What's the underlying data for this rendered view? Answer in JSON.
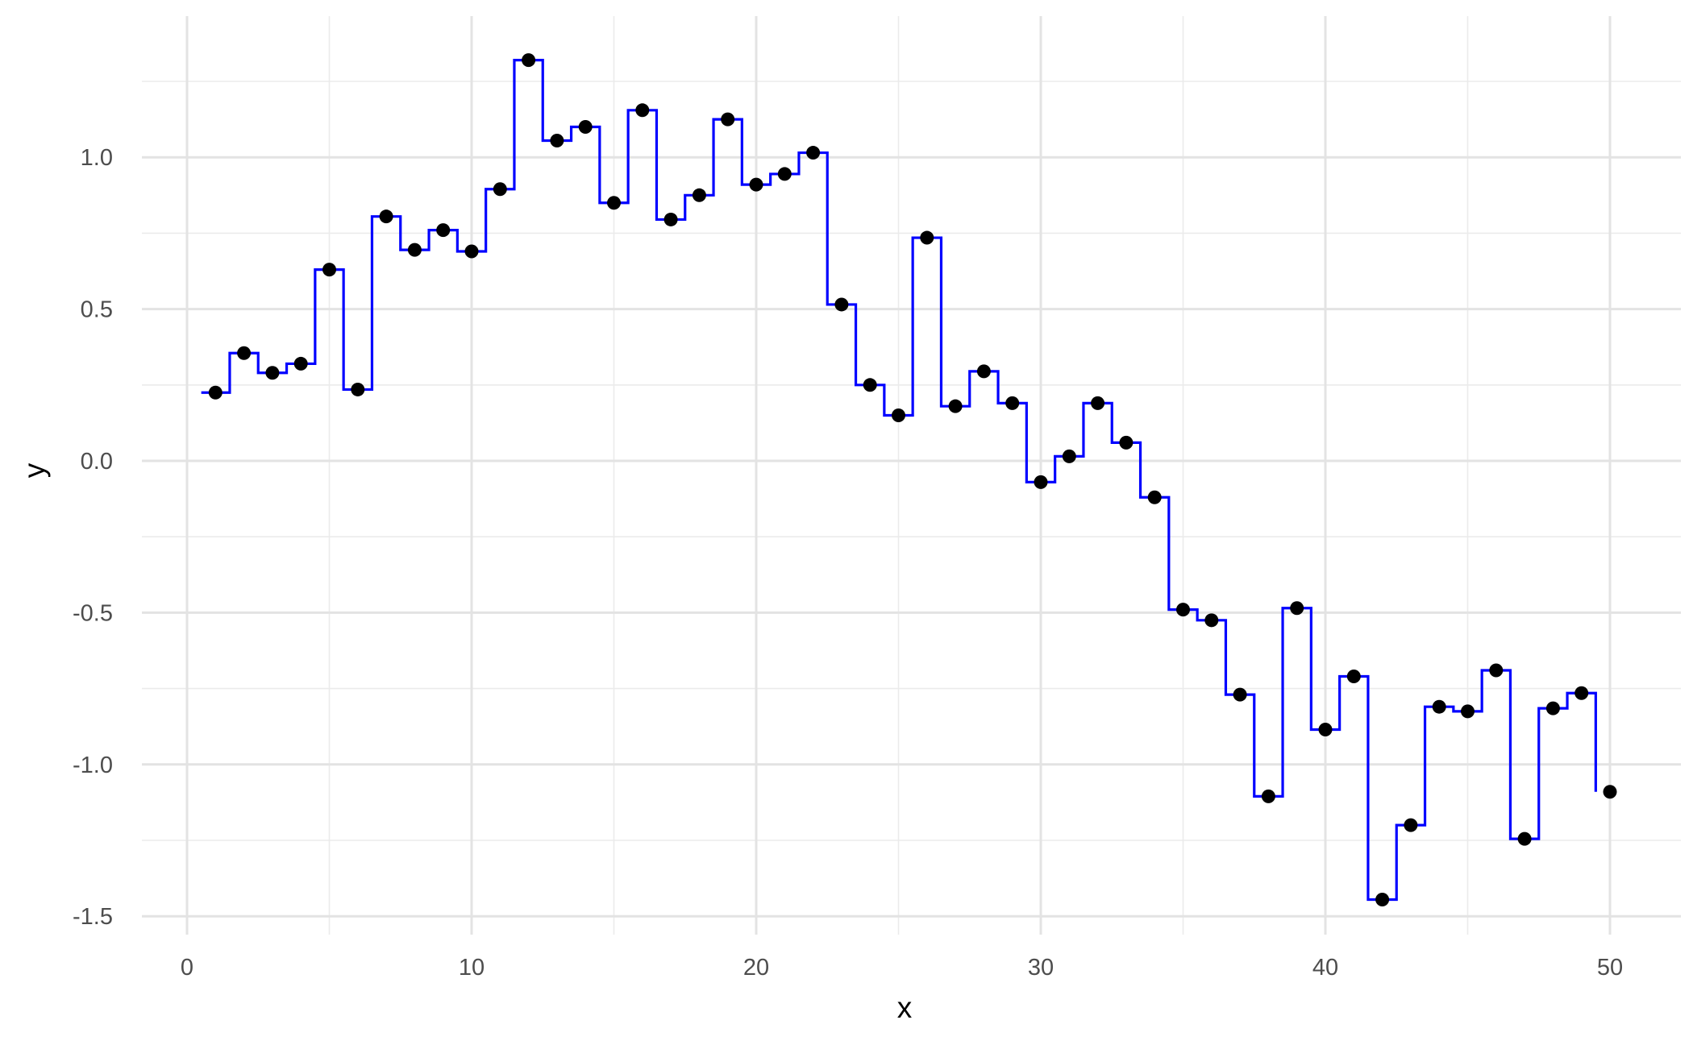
{
  "chart_data": {
    "type": "line",
    "title": "",
    "xlabel": "x",
    "ylabel": "y",
    "xlim": [
      -0.5,
      51.5
    ],
    "ylim": [
      -1.55,
      1.4
    ],
    "x_ticks": [
      0,
      10,
      20,
      30,
      40,
      50
    ],
    "x_tick_labels": [
      "0",
      "10",
      "20",
      "30",
      "40",
      "50"
    ],
    "y_ticks": [
      -1.5,
      -1.0,
      -0.5,
      0.0,
      0.5,
      1.0
    ],
    "y_tick_labels": [
      "-1.5",
      "-1.0",
      "-0.5",
      "0.0",
      "0.5",
      "1.0"
    ],
    "grid": true,
    "legend": "none",
    "line_color": "#0000ff",
    "point_color": "#000000",
    "line_style": "step (horizontal segments centered on each x)",
    "series": [
      {
        "x": [
          1,
          2,
          3,
          4,
          5,
          6,
          7,
          8,
          9,
          10,
          11,
          12,
          13,
          14,
          15,
          16,
          17,
          18,
          19,
          20,
          21,
          22,
          23,
          24,
          25,
          26,
          27,
          28,
          29,
          30,
          31,
          32,
          33,
          34,
          35,
          36,
          37,
          38,
          39,
          40,
          41,
          42,
          43,
          44,
          45,
          46,
          47,
          48,
          49,
          50
        ],
        "y": [
          0.225,
          0.355,
          0.29,
          0.32,
          0.63,
          0.235,
          0.805,
          0.695,
          0.76,
          0.69,
          0.895,
          1.32,
          1.055,
          1.1,
          0.85,
          1.155,
          0.795,
          0.875,
          1.125,
          0.91,
          0.945,
          1.015,
          0.515,
          0.25,
          0.15,
          0.735,
          0.18,
          0.295,
          0.19,
          -0.07,
          0.015,
          0.19,
          0.06,
          -0.12,
          -0.49,
          -0.525,
          -0.77,
          -1.105,
          -0.485,
          -0.885,
          -0.71,
          -1.445,
          -1.2,
          -0.81,
          -0.825,
          -0.69,
          -1.245,
          -0.815,
          -0.765,
          -1.09
        ]
      }
    ]
  }
}
